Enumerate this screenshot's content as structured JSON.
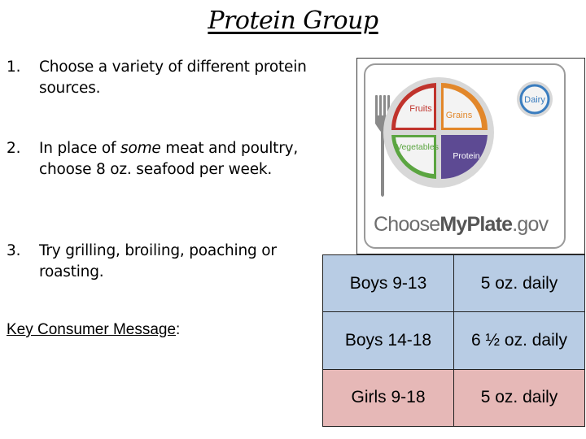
{
  "title": "Protein Group",
  "tips": [
    {
      "num": "1.",
      "text": "Choose a variety of different protein sources."
    },
    {
      "num": "2.",
      "text_before": "In place of ",
      "text_em": "some",
      "text_after": " meat and poultry, choose 8 oz. seafood per week."
    },
    {
      "num": "3.",
      "text": "Try grilling, broiling, poaching or roasting."
    }
  ],
  "key_message": {
    "label": "Key Consumer Message",
    "suffix": ":"
  },
  "myplate": {
    "fruits": "Fruits",
    "grains": "Grains",
    "vegetables": "Vegetables",
    "protein": "Protein",
    "dairy": "Dairy",
    "logo_pre": "Choose",
    "logo_bold": "MyPlate",
    "logo_post": ".gov",
    "colors": {
      "fruits": "#c0332c",
      "grains": "#e2872a",
      "vegetables": "#5ba541",
      "protein": "#5d4a93",
      "dairy": "#3a7dbf"
    }
  },
  "portions": [
    {
      "group": "Boys 9-13",
      "amount": "5 oz. daily",
      "color": "#b8cce4"
    },
    {
      "group": "Boys 14-18",
      "amount": "6 ½ oz. daily",
      "color": "#b8cce4"
    },
    {
      "group": "Girls 9-18",
      "amount": "5 oz. daily",
      "color": "#e6b8b7"
    }
  ]
}
